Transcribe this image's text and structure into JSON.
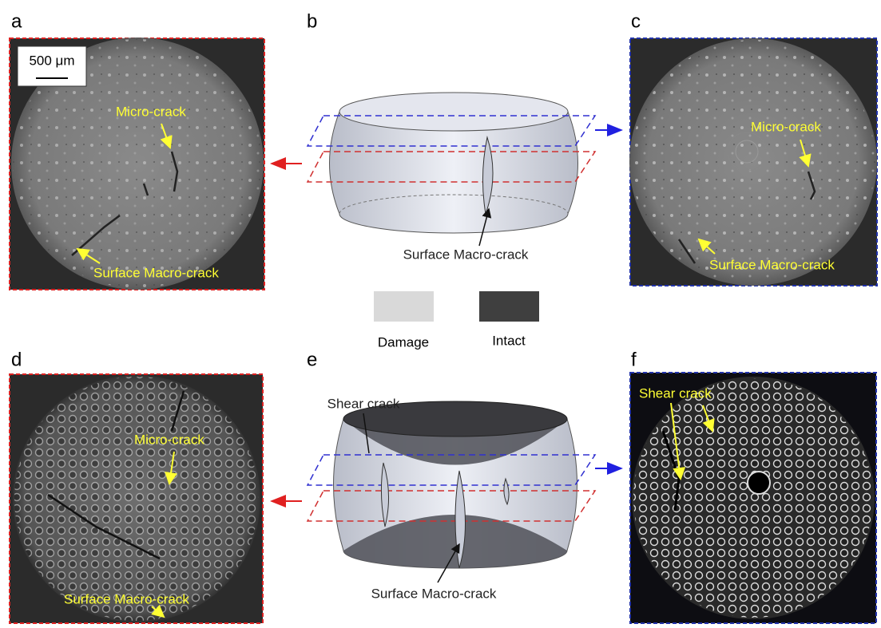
{
  "scale_bar": "500 μm",
  "panels": [
    {
      "label": "a",
      "annotations": [
        "Micro-crack",
        "Surface Macro-crack"
      ]
    },
    {
      "label": "b",
      "annotations": [
        "Surface Macro-crack"
      ]
    },
    {
      "label": "c",
      "annotations": [
        "Micro-crack",
        "Surface Macro-crack"
      ]
    },
    {
      "label": "d",
      "annotations": [
        "Micro-crack",
        "Surface Macro-crack"
      ]
    },
    {
      "label": "e",
      "annotations": [
        "Shear crack",
        "Surface Macro-crack"
      ]
    },
    {
      "label": "f",
      "annotations": [
        "Shear crack"
      ]
    }
  ],
  "legend": [
    {
      "label": "Damage",
      "color": "#d9d9d9"
    },
    {
      "label": "Intact",
      "color": "#3f3f3f"
    }
  ]
}
